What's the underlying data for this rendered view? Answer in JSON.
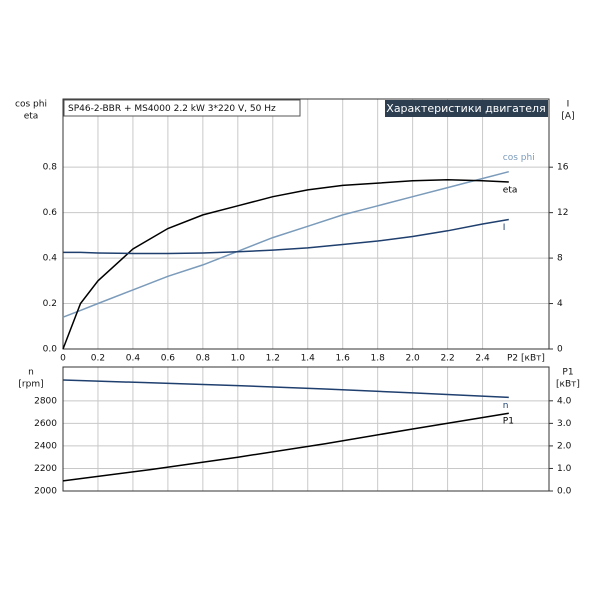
{
  "chart_data": [
    {
      "type": "line",
      "title": "SP46-2-BBR + MS4000  2.2 kW  3*220 V, 50 Hz",
      "header": "Характеристики двигателя",
      "ylabel": [
        "cos phi",
        "eta"
      ],
      "y2label": [
        "I",
        "[A]"
      ],
      "xlabel": "P2 [кВт]",
      "x": [
        0,
        0.1,
        0.2,
        0.4,
        0.6,
        0.8,
        1.0,
        1.2,
        1.4,
        1.6,
        1.8,
        2.0,
        2.2,
        2.4,
        2.55
      ],
      "xlim": [
        0,
        2.78
      ],
      "xticks": [
        0,
        0.2,
        0.4,
        0.6,
        0.8,
        {
          "value": 1.0,
          "label": "1.0"
        },
        1.2,
        1.4,
        1.6,
        1.8,
        {
          "value": 2.0,
          "label": "2.0"
        },
        2.2,
        2.4
      ],
      "xtick_labels": true,
      "ylim": [
        0,
        1.1
      ],
      "yticks": [
        {
          "value": 0,
          "label": "0.0"
        },
        0.2,
        0.4,
        0.6,
        0.8
      ],
      "y2lim": [
        0,
        22
      ],
      "y2ticks": [
        0,
        4,
        8,
        12,
        16
      ],
      "grid": true,
      "series": [
        {
          "name": "cos phi",
          "color": "#7b9bbb",
          "values": [
            0.14,
            0.17,
            0.2,
            0.26,
            0.32,
            0.37,
            0.43,
            0.49,
            0.54,
            0.59,
            0.63,
            0.67,
            0.71,
            0.75,
            0.78
          ]
        },
        {
          "name": "eta",
          "color": "#000000",
          "values": [
            0,
            0.2,
            0.3,
            0.44,
            0.53,
            0.59,
            0.63,
            0.67,
            0.7,
            0.72,
            0.73,
            0.74,
            0.745,
            0.74,
            0.735
          ]
        },
        {
          "name": "I",
          "color": "#1f3f6e",
          "axis": "y2",
          "values": [
            8.5,
            8.5,
            8.45,
            8.4,
            8.4,
            8.45,
            8.55,
            8.7,
            8.9,
            9.2,
            9.5,
            9.9,
            10.4,
            11,
            11.4
          ]
        }
      ]
    },
    {
      "type": "line",
      "ylabel": [
        "n",
        "[rpm]"
      ],
      "y2label": [
        "P1",
        "[кВт]"
      ],
      "x": [
        0,
        0.5,
        1.0,
        1.5,
        2.0,
        2.55
      ],
      "xlim": [
        0,
        2.78
      ],
      "xticks": [
        0,
        0.2,
        0.4,
        0.6,
        0.8,
        1.0,
        1.2,
        1.4,
        1.6,
        1.8,
        2.0,
        2.2,
        2.4
      ],
      "xtick_labels": false,
      "ylim": [
        2000,
        3100
      ],
      "yticks": [
        2000,
        2200,
        2400,
        2600,
        2800
      ],
      "y2lim": [
        0,
        5.5
      ],
      "y2ticks": [
        {
          "value": 0,
          "label": "0.0"
        },
        {
          "value": 1,
          "label": "1.0"
        },
        {
          "value": 2,
          "label": "2.0"
        },
        {
          "value": 3,
          "label": "3.0"
        },
        {
          "value": 4,
          "label": "4.0"
        }
      ],
      "grid": true,
      "series": [
        {
          "name": "n",
          "color": "#1f3f6e",
          "values": [
            2985,
            2960,
            2935,
            2905,
            2870,
            2830
          ]
        },
        {
          "name": "P1",
          "color": "#000000",
          "axis": "y2",
          "values": [
            0.45,
            0.95,
            1.5,
            2.1,
            2.75,
            3.45
          ]
        }
      ]
    }
  ]
}
